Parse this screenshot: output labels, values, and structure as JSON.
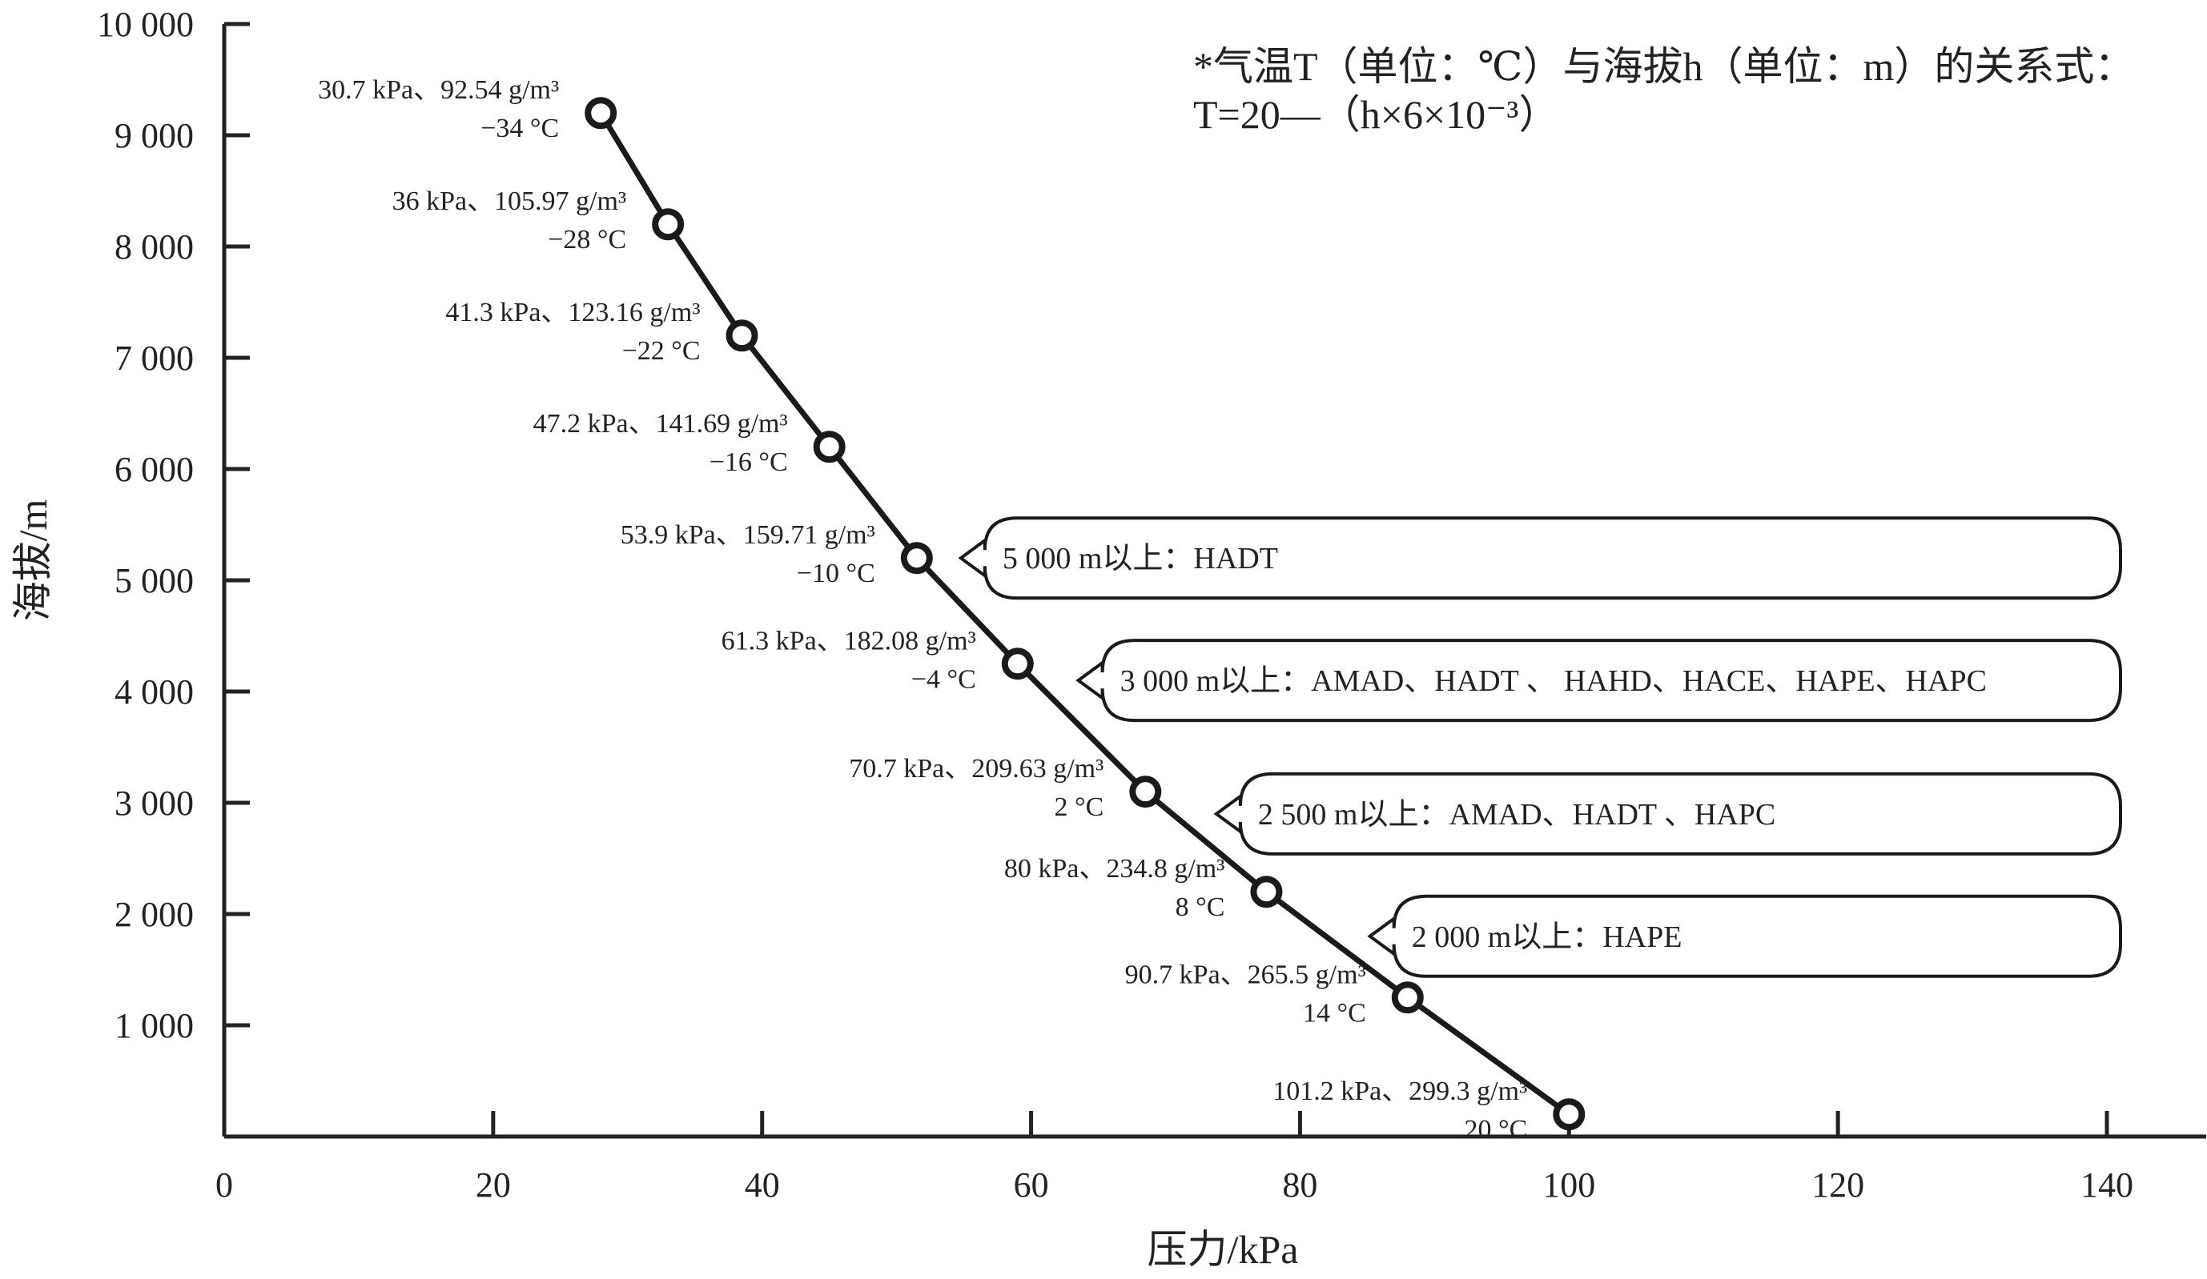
{
  "chart_data": {
    "type": "line",
    "xlabel": "压力/kPa",
    "ylabel": "海拔/m",
    "xlim": [
      0,
      140
    ],
    "ylim": [
      0,
      10000
    ],
    "x_ticks": [
      "0",
      "20",
      "40",
      "60",
      "80",
      "100",
      "120",
      "140"
    ],
    "y_ticks": [
      "1 000",
      "2 000",
      "3 000",
      "4 000",
      "5 000",
      "6 000",
      "7 000",
      "8 000",
      "9 000",
      "10 000"
    ],
    "grid": false,
    "series": [
      {
        "points": [
          {
            "x": 28.0,
            "y": 9200,
            "label1": "30.7 kPa、92.54 g/m³",
            "label2": "−34 °C"
          },
          {
            "x": 33.0,
            "y": 8200,
            "label1": "36 kPa、105.97 g/m³",
            "label2": "−28 °C"
          },
          {
            "x": 38.5,
            "y": 7200,
            "label1": "41.3 kPa、123.16 g/m³",
            "label2": "−22 °C"
          },
          {
            "x": 45.0,
            "y": 6200,
            "label1": "47.2 kPa、141.69 g/m³",
            "label2": "−16 °C"
          },
          {
            "x": 51.5,
            "y": 5200,
            "label1": "53.9 kPa、159.71 g/m³",
            "label2": "−10 °C"
          },
          {
            "x": 59.0,
            "y": 4250,
            "label1": "61.3 kPa、182.08 g/m³",
            "label2": "−4 °C"
          },
          {
            "x": 68.5,
            "y": 3100,
            "label1": "70.7 kPa、209.63 g/m³",
            "label2": "2 °C"
          },
          {
            "x": 77.5,
            "y": 2200,
            "label1": "80 kPa、234.8 g/m³",
            "label2": "8 °C"
          },
          {
            "x": 88.0,
            "y": 1250,
            "label1": "90.7 kPa、265.5 g/m³",
            "label2": "14 °C"
          },
          {
            "x": 100.0,
            "y": 200,
            "label1": "101.2 kPa、299.3 g/m³",
            "label2": "20 °C"
          }
        ]
      }
    ],
    "annotations": {
      "note_line1": "*气温T（单位：℃）与海拔h（单位：m）的关系式：",
      "note_line2": "T=20—（h×6×10⁻³）",
      "callouts": [
        {
          "text": "5 000 m以上：HADT",
          "y": 5200
        },
        {
          "text": "3 000 m以上：AMAD、HADT 、 HAHD、HACE、HAPE、HAPC",
          "y": 4100
        },
        {
          "text": "2 500 m以上：AMAD、HADT 、HAPC",
          "y": 2900
        },
        {
          "text": "2 000 m以上：HAPE",
          "y": 1800
        }
      ]
    }
  }
}
